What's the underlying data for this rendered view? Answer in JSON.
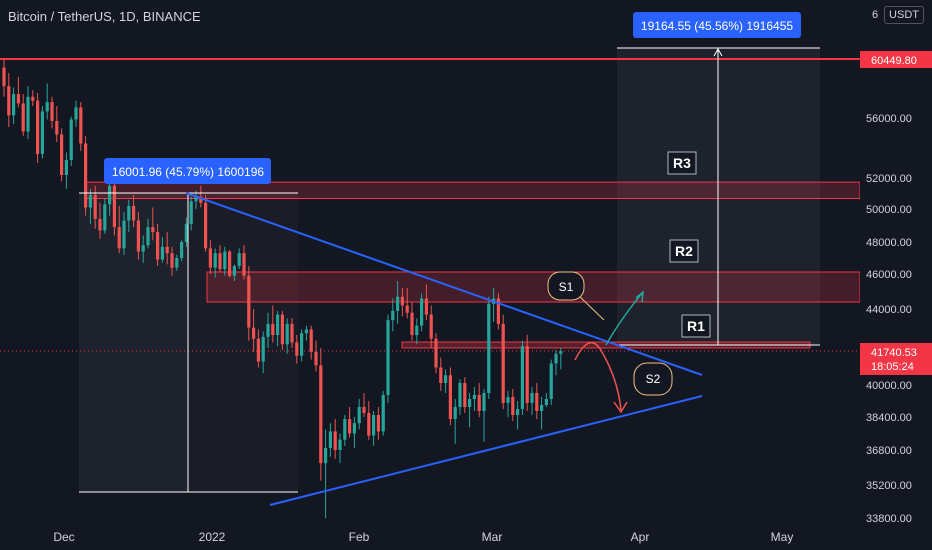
{
  "header": {
    "title": "Bitcoin / TetherUS, 1D, BINANCE",
    "currency": "USDT"
  },
  "colors": {
    "background": "#131722",
    "up": "#26a69a",
    "down": "#ef5350",
    "trendline": "#2962ff",
    "zone": "#f23645",
    "measure": "#2962ff",
    "text": "#d1d4dc"
  },
  "chart_data": {
    "type": "candlestick",
    "title": "Bitcoin / TetherUS, 1D, BINANCE",
    "x_ticks": [
      "Dec",
      "2022",
      "Feb",
      "Mar",
      "Apr",
      "May"
    ],
    "y_ticks": [
      "56000.00",
      "52000.00",
      "50000.00",
      "48000.00",
      "46000.00",
      "44000.00",
      "40000.00",
      "38400.00",
      "36800.00",
      "35200.00",
      "33800.00"
    ],
    "y_range": [
      33800,
      64000
    ],
    "grid": false,
    "last_price": {
      "value": "41740.53",
      "countdown": "18:05:24"
    },
    "price_label_top": "60449.80",
    "ohlc_candles": [
      [
        59800,
        60500,
        57600,
        58400
      ],
      [
        58400,
        59400,
        55400,
        56200
      ],
      [
        56200,
        58300,
        55600,
        57800
      ],
      [
        57800,
        59100,
        56800,
        57100
      ],
      [
        57100,
        57800,
        54800,
        55100
      ],
      [
        55100,
        58400,
        54600,
        57600
      ],
      [
        57600,
        58100,
        56900,
        57300
      ],
      [
        57300,
        57900,
        53000,
        53600
      ],
      [
        53600,
        56900,
        53300,
        56500
      ],
      [
        56500,
        58600,
        55900,
        57200
      ],
      [
        57200,
        57600,
        55300,
        55800
      ],
      [
        55800,
        56900,
        54400,
        54900
      ],
      [
        54900,
        55300,
        51800,
        52200
      ],
      [
        52200,
        53700,
        51300,
        53200
      ],
      [
        53200,
        56100,
        52800,
        55900
      ],
      [
        55900,
        57300,
        55400,
        56800
      ],
      [
        56800,
        57200,
        53800,
        54300
      ],
      [
        54300,
        54800,
        49600,
        50100
      ],
      [
        50100,
        51300,
        49100,
        50900
      ],
      [
        50900,
        51500,
        48800,
        49400
      ],
      [
        49400,
        50400,
        48200,
        48700
      ],
      [
        48700,
        50700,
        48500,
        50300
      ],
      [
        50300,
        51900,
        49600,
        51500
      ],
      [
        51500,
        52200,
        48400,
        48900
      ],
      [
        48900,
        50200,
        47300,
        47600
      ],
      [
        47600,
        49800,
        47200,
        49300
      ],
      [
        49300,
        50600,
        48600,
        50200
      ],
      [
        50200,
        50900,
        48900,
        49300
      ],
      [
        49300,
        49800,
        46900,
        47400
      ],
      [
        47400,
        48400,
        46700,
        47800
      ],
      [
        47800,
        49400,
        47600,
        48900
      ],
      [
        48900,
        50100,
        48100,
        48600
      ],
      [
        48600,
        49100,
        46500,
        46900
      ],
      [
        46900,
        48300,
        46700,
        47700
      ],
      [
        47700,
        48600,
        46600,
        47300
      ],
      [
        47300,
        47700,
        45900,
        46400
      ],
      [
        46400,
        47200,
        46200,
        47000
      ],
      [
        47000,
        48100,
        46800,
        48000
      ],
      [
        48000,
        49500,
        47700,
        49100
      ],
      [
        49100,
        50800,
        48700,
        50500
      ],
      [
        50500,
        51200,
        50000,
        50800
      ],
      [
        50800,
        51500,
        50100,
        50400
      ],
      [
        50400,
        50900,
        47400,
        47600
      ],
      [
        47600,
        48100,
        46000,
        46400
      ],
      [
        46400,
        47600,
        45800,
        47300
      ],
      [
        47300,
        47800,
        46100,
        46300
      ],
      [
        46300,
        47700,
        45900,
        47400
      ],
      [
        47400,
        47500,
        45800,
        45900
      ],
      [
        45900,
        46600,
        45600,
        46500
      ],
      [
        46500,
        47600,
        46300,
        47300
      ],
      [
        47300,
        47800,
        45700,
        45900
      ],
      [
        45900,
        46500,
        42300,
        43000
      ],
      [
        43000,
        44000,
        41700,
        42400
      ],
      [
        42400,
        42900,
        40900,
        41200
      ],
      [
        41200,
        42800,
        40600,
        42500
      ],
      [
        42500,
        43800,
        41900,
        43200
      ],
      [
        43200,
        44200,
        42200,
        42600
      ],
      [
        42600,
        43900,
        42000,
        43700
      ],
      [
        43700,
        43900,
        41800,
        42100
      ],
      [
        42100,
        43500,
        41600,
        43200
      ],
      [
        43200,
        43500,
        41900,
        42200
      ],
      [
        42200,
        42600,
        41100,
        41500
      ],
      [
        41500,
        42900,
        41200,
        42700
      ],
      [
        42700,
        43100,
        42300,
        42900
      ],
      [
        42900,
        43100,
        41300,
        41700
      ],
      [
        41700,
        42300,
        40700,
        41000
      ],
      [
        41000,
        41900,
        35400,
        36200
      ],
      [
        36200,
        37800,
        33800,
        36900
      ],
      [
        36900,
        38100,
        36500,
        37700
      ],
      [
        37700,
        38300,
        36400,
        36800
      ],
      [
        36800,
        37600,
        36200,
        37300
      ],
      [
        37300,
        38500,
        37000,
        38300
      ],
      [
        38300,
        38900,
        37400,
        37600
      ],
      [
        37600,
        38400,
        36900,
        38100
      ],
      [
        38100,
        39300,
        37800,
        38900
      ],
      [
        38900,
        39600,
        38400,
        38600
      ],
      [
        38600,
        39200,
        37300,
        37500
      ],
      [
        37500,
        38700,
        37000,
        38500
      ],
      [
        38500,
        38900,
        37300,
        37700
      ],
      [
        37700,
        39700,
        37500,
        39500
      ],
      [
        39500,
        43700,
        39100,
        43400
      ],
      [
        43400,
        44600,
        42800,
        43900
      ],
      [
        43900,
        45600,
        43200,
        44700
      ],
      [
        44700,
        45200,
        43600,
        44200
      ],
      [
        44200,
        45200,
        43500,
        43800
      ],
      [
        43800,
        44400,
        42300,
        42600
      ],
      [
        42600,
        43500,
        42100,
        43100
      ],
      [
        43100,
        44900,
        42800,
        44600
      ],
      [
        44600,
        45400,
        43400,
        43700
      ],
      [
        43700,
        44200,
        41900,
        42400
      ],
      [
        42400,
        42700,
        40600,
        40900
      ],
      [
        40900,
        41400,
        39700,
        40100
      ],
      [
        40100,
        40800,
        39600,
        40500
      ],
      [
        40500,
        40900,
        38000,
        38300
      ],
      [
        38300,
        39300,
        37100,
        38900
      ],
      [
        38900,
        40300,
        38500,
        40100
      ],
      [
        40100,
        40400,
        38600,
        38900
      ],
      [
        38900,
        39600,
        37900,
        39300
      ],
      [
        39300,
        39900,
        38700,
        39500
      ],
      [
        39500,
        40100,
        38400,
        38700
      ],
      [
        38700,
        39800,
        37200,
        39600
      ],
      [
        39600,
        44700,
        39300,
        44300
      ],
      [
        44300,
        45200,
        43300,
        44600
      ],
      [
        44600,
        44900,
        42900,
        43200
      ],
      [
        43200,
        43700,
        38800,
        39100
      ],
      [
        39100,
        39700,
        38400,
        39400
      ],
      [
        39400,
        39800,
        38200,
        38500
      ],
      [
        38500,
        39200,
        37800,
        38800
      ],
      [
        38800,
        42300,
        38500,
        42000
      ],
      [
        42000,
        42600,
        38700,
        39100
      ],
      [
        39100,
        39900,
        38500,
        39600
      ],
      [
        39600,
        40100,
        38300,
        38700
      ],
      [
        38700,
        39400,
        37800,
        39000
      ],
      [
        39000,
        39600,
        38900,
        39300
      ],
      [
        39300,
        41300,
        39000,
        41100
      ],
      [
        41100,
        41800,
        40500,
        41600
      ],
      [
        41600,
        41900,
        40800,
        41740
      ]
    ],
    "drawings": {
      "resistance_zones": [
        {
          "label": "R3",
          "low": 51000,
          "high": 51800
        },
        {
          "label": "R2",
          "low": 44500,
          "high": 46200
        },
        {
          "label": "R1",
          "low": 41800,
          "high": 42300
        }
      ],
      "horizontal_line": 60449.8,
      "trendlines": [
        {
          "name": "descending",
          "from": [
            0.2,
            51200
          ],
          "to": [
            0.752,
            40600
          ]
        },
        {
          "name": "ascending",
          "from": [
            0.29,
            35000
          ],
          "to": [
            0.752,
            39400
          ]
        }
      ],
      "measures": [
        {
          "label": "16001.96 (45.79%) 1600196"
        },
        {
          "label": "19164.55 (45.56%) 1916455"
        }
      ],
      "scenarios": [
        {
          "label": "S1",
          "direction": "up"
        },
        {
          "label": "S2",
          "direction": "down"
        }
      ]
    }
  }
}
